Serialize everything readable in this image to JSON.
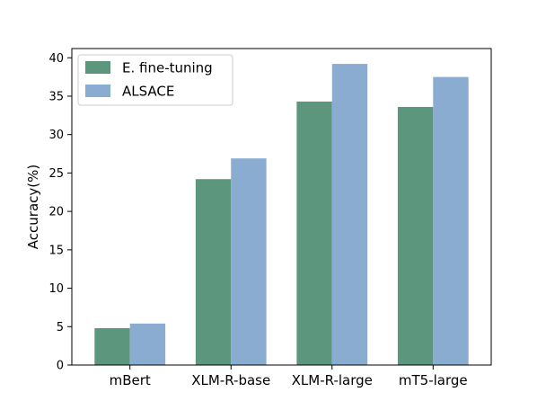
{
  "chart_data": {
    "type": "bar",
    "title": "",
    "xlabel": "",
    "ylabel": "Accuracy(%)",
    "ylim": [
      0,
      41.2
    ],
    "yticks": [
      0,
      5,
      10,
      15,
      20,
      25,
      30,
      35,
      40
    ],
    "grid": false,
    "legend_position": "top-left",
    "categories": [
      "mBert",
      "XLM-R-base",
      "XLM-R-large",
      "mT5-large"
    ],
    "series": [
      {
        "name": "E. fine-tuning",
        "color": "#5b967d",
        "values": [
          4.8,
          24.2,
          34.3,
          33.6
        ]
      },
      {
        "name": "ALSACE",
        "color": "#89acd0",
        "values": [
          5.4,
          26.9,
          39.2,
          37.5
        ]
      }
    ]
  }
}
